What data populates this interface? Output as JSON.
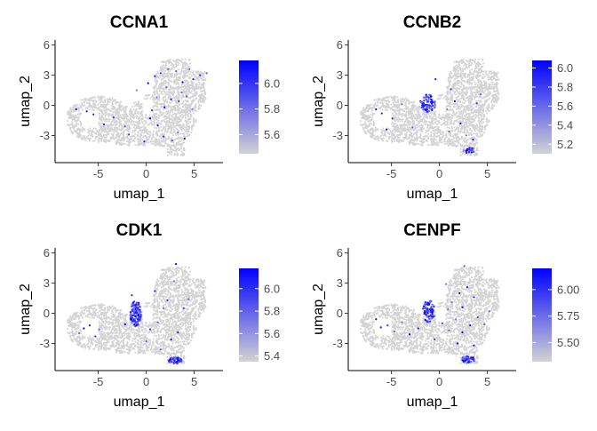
{
  "chart_data": [
    {
      "type": "scatter",
      "title": "CCNA1",
      "xlabel": "umap_1",
      "ylabel": "umap_2",
      "xlim": [
        -9.5,
        8
      ],
      "ylim": [
        -5.7,
        6.5
      ],
      "xticks": [
        -5,
        0,
        5
      ],
      "yticks": [
        -3,
        0,
        3,
        6
      ],
      "color_scale": {
        "low": "#d3d3d3",
        "high": "#0000ff",
        "min": 5.45,
        "max": 6.18,
        "ticks": [
          5.6,
          5.8,
          6.0
        ]
      },
      "highlight_points": [
        [
          -6.2,
          -0.6
        ],
        [
          -5.5,
          -0.9
        ],
        [
          -3.4,
          -1.2
        ],
        [
          -2.2,
          -2.1
        ],
        [
          -1.0,
          1.5
        ],
        [
          0.2,
          2.2
        ],
        [
          0.9,
          2.9
        ],
        [
          1.5,
          3.2
        ],
        [
          2.3,
          3.6
        ],
        [
          3.1,
          3.4
        ],
        [
          3.8,
          2.3
        ],
        [
          4.9,
          2.6
        ],
        [
          5.6,
          3.0
        ],
        [
          6.3,
          3.2
        ],
        [
          1.1,
          0.8
        ],
        [
          1.9,
          -0.2
        ],
        [
          2.6,
          0.6
        ],
        [
          3.4,
          0.4
        ],
        [
          4.2,
          0.9
        ],
        [
          4.8,
          -0.4
        ],
        [
          0.4,
          -1.3
        ],
        [
          1.2,
          -2.0
        ],
        [
          1.8,
          -3.1
        ],
        [
          2.7,
          -3.5
        ],
        [
          3.3,
          -2.7
        ],
        [
          4.0,
          -3.3
        ],
        [
          -0.2,
          -3.6
        ],
        [
          -1.8,
          -2.9
        ],
        [
          2.1,
          1.8
        ],
        [
          3.7,
          1.3
        ],
        [
          -7.3,
          -0.4
        ],
        [
          -4.4,
          -1.9
        ],
        [
          0.6,
          -0.5
        ],
        [
          4.5,
          3.6
        ]
      ]
    },
    {
      "type": "scatter",
      "title": "CCNB2",
      "xlabel": "umap_1",
      "ylabel": "umap_2",
      "xlim": [
        -9.5,
        8
      ],
      "ylim": [
        -5.7,
        6.5
      ],
      "xticks": [
        -5,
        0,
        5
      ],
      "yticks": [
        -3,
        0,
        3,
        6
      ],
      "color_scale": {
        "low": "#d3d3d3",
        "high": "#0000ff",
        "min": 5.1,
        "max": 6.08,
        "ticks": [
          5.2,
          5.4,
          5.6,
          5.8,
          6.0
        ]
      },
      "clusters": [
        {
          "cx": -1.2,
          "cy": 0.2,
          "rx": 0.8,
          "ry": 0.9,
          "n": 70
        },
        {
          "cx": 3.1,
          "cy": -4.5,
          "rx": 0.6,
          "ry": 0.3,
          "n": 30
        }
      ],
      "highlight_points": [
        [
          -6.6,
          -0.4
        ],
        [
          -6.0,
          -0.8
        ],
        [
          -4.9,
          -1.3
        ],
        [
          -2.8,
          -2.2
        ],
        [
          0.8,
          -0.4
        ],
        [
          1.6,
          0.4
        ],
        [
          2.2,
          -1.8
        ],
        [
          3.9,
          0.2
        ],
        [
          1.0,
          -2.6
        ],
        [
          2.8,
          -3.0
        ],
        [
          3.5,
          -3.4
        ],
        [
          -0.4,
          2.6
        ],
        [
          1.2,
          1.6
        ],
        [
          4.3,
          1.1
        ],
        [
          -3.9,
          0.1
        ],
        [
          -5.5,
          -2.4
        ]
      ]
    },
    {
      "type": "scatter",
      "title": "CDK1",
      "xlabel": "umap_1",
      "ylabel": "umap_2",
      "xlim": [
        -9.5,
        8
      ],
      "ylim": [
        -5.7,
        6.5
      ],
      "xticks": [
        -5,
        0,
        5
      ],
      "yticks": [
        -3,
        0,
        3,
        6
      ],
      "color_scale": {
        "low": "#d3d3d3",
        "high": "#0000ff",
        "min": 5.35,
        "max": 6.18,
        "ticks": [
          5.4,
          5.6,
          5.8,
          6.0
        ]
      },
      "clusters": [
        {
          "cx": -1.1,
          "cy": 0.0,
          "rx": 0.6,
          "ry": 1.3,
          "n": 120
        },
        {
          "cx": 3.0,
          "cy": -4.7,
          "rx": 0.7,
          "ry": 0.35,
          "n": 60
        }
      ],
      "highlight_points": [
        [
          -6.5,
          -1.5
        ],
        [
          -5.9,
          -1.2
        ],
        [
          -5.3,
          -2.3
        ],
        [
          -4.9,
          -1.6
        ],
        [
          -7.0,
          -2.0
        ],
        [
          -2.2,
          -1.1
        ],
        [
          -1.5,
          1.8
        ],
        [
          0.4,
          -1.6
        ],
        [
          1.2,
          -0.9
        ],
        [
          1.8,
          0.5
        ],
        [
          2.6,
          -2.6
        ],
        [
          3.3,
          -1.9
        ],
        [
          3.9,
          0.5
        ],
        [
          4.4,
          1.4
        ],
        [
          2.9,
          3.2
        ],
        [
          3.1,
          4.9
        ],
        [
          0.9,
          2.2
        ],
        [
          2.2,
          1.3
        ],
        [
          0.0,
          -2.8
        ],
        [
          1.5,
          -3.6
        ]
      ]
    },
    {
      "type": "scatter",
      "title": "CENPF",
      "xlabel": "umap_1",
      "ylabel": "umap_2",
      "xlim": [
        -9.5,
        8
      ],
      "ylim": [
        -5.7,
        6.5
      ],
      "xticks": [
        -5,
        0,
        5
      ],
      "yticks": [
        -3,
        0,
        3,
        6
      ],
      "color_scale": {
        "low": "#d3d3d3",
        "high": "#0000ff",
        "min": 5.32,
        "max": 6.2,
        "ticks": [
          5.5,
          5.75,
          6.0
        ]
      },
      "clusters": [
        {
          "cx": -1.1,
          "cy": 0.2,
          "rx": 0.65,
          "ry": 1.1,
          "n": 90
        },
        {
          "cx": 3.0,
          "cy": -4.6,
          "rx": 0.7,
          "ry": 0.35,
          "n": 45
        }
      ],
      "highlight_points": [
        [
          -6.6,
          -0.6
        ],
        [
          -6.1,
          -1.4
        ],
        [
          -5.4,
          -1.2
        ],
        [
          -4.7,
          -1.8
        ],
        [
          -3.9,
          -0.9
        ],
        [
          -3.1,
          -2.1
        ],
        [
          -2.2,
          -1.5
        ],
        [
          0.3,
          -1.0
        ],
        [
          1.0,
          -1.7
        ],
        [
          1.7,
          -0.6
        ],
        [
          2.4,
          -1.9
        ],
        [
          3.2,
          -1.2
        ],
        [
          4.0,
          -0.4
        ],
        [
          4.7,
          -1.1
        ],
        [
          1.3,
          1.1
        ],
        [
          2.1,
          2.0
        ],
        [
          2.9,
          2.6
        ],
        [
          3.6,
          1.6
        ],
        [
          2.6,
          4.7
        ],
        [
          0.7,
          2.9
        ],
        [
          1.9,
          -3.0
        ],
        [
          3.6,
          -3.2
        ],
        [
          -0.5,
          -2.6
        ],
        [
          5.2,
          0.2
        ],
        [
          0.9,
          0.4
        ],
        [
          2.4,
          0.6
        ]
      ]
    }
  ]
}
